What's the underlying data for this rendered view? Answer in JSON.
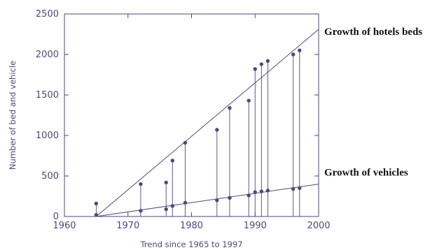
{
  "chart_data": {
    "type": "scatter",
    "xlabel": "Trend since 1965 to 1997",
    "ylabel": "Number of bed and vehicle",
    "xlim": [
      1960,
      2000
    ],
    "ylim": [
      0,
      2500
    ],
    "x_ticks": [
      "1960",
      "1970",
      "1980",
      "1990",
      "2000"
    ],
    "y_ticks": [
      "0",
      "500",
      "1000",
      "1500",
      "2000",
      "2500"
    ],
    "grid": false,
    "series": [
      {
        "name": "hotels beds",
        "x": [
          1965,
          1972,
          1976,
          1977,
          1979,
          1984,
          1986,
          1989,
          1990,
          1991,
          1992,
          1996,
          1997
        ],
        "y": [
          160,
          400,
          420,
          690,
          910,
          1070,
          1340,
          1430,
          1820,
          1880,
          1920,
          2000,
          2050
        ]
      },
      {
        "name": "vehicles",
        "x": [
          1965,
          1972,
          1976,
          1977,
          1979,
          1984,
          1986,
          1989,
          1990,
          1991,
          1992,
          1996,
          1997
        ],
        "y": [
          20,
          70,
          90,
          130,
          170,
          200,
          230,
          260,
          300,
          310,
          320,
          340,
          350
        ]
      }
    ],
    "trend_lines": [
      {
        "series": "hotels beds",
        "x": [
          1965,
          2000
        ],
        "y": [
          0,
          2310
        ]
      },
      {
        "series": "vehicles",
        "x": [
          1965,
          2000
        ],
        "y": [
          0,
          400
        ]
      }
    ],
    "annotations": [
      {
        "text": "Growth of hotels beds",
        "series": "hotels beds"
      },
      {
        "text": "Growth of vehicles",
        "series": "vehicles"
      }
    ],
    "colors": {
      "ink": "#4a4a7a",
      "annotation": "#111111"
    }
  }
}
